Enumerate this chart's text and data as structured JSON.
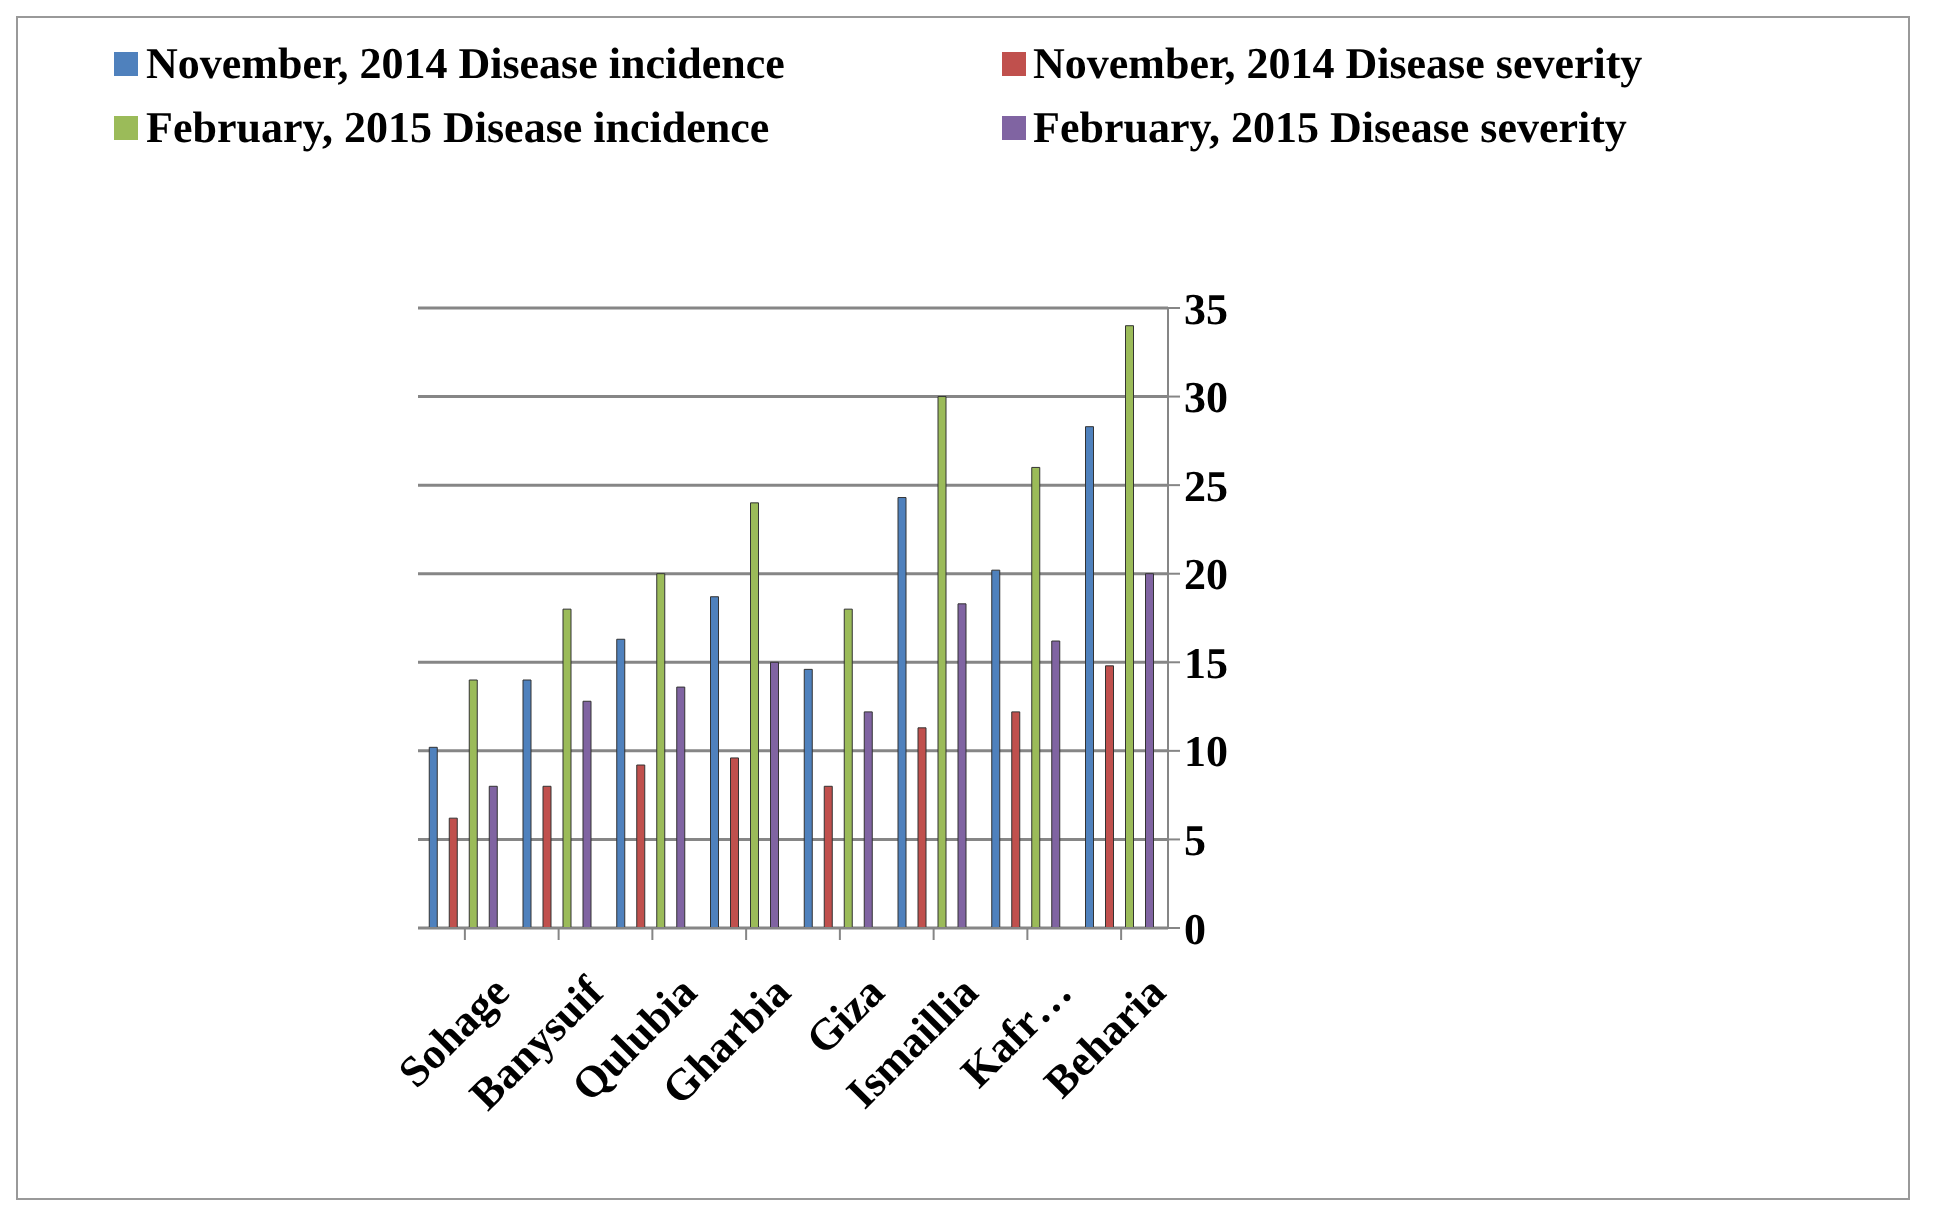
{
  "chart_data": {
    "type": "bar",
    "categories": [
      "Sohage",
      "Banysuif",
      "Qulubia",
      "Gharbia",
      "Giza",
      "Ismaillia",
      "Kafr…",
      "Beharia"
    ],
    "series": [
      {
        "name": "November, 2014 Disease incidence",
        "color": "#4f81bd",
        "values": [
          10.2,
          14,
          16.3,
          18.7,
          14.6,
          24.3,
          20.2,
          28.3
        ]
      },
      {
        "name": "November, 2014 Disease severity",
        "color": "#c0504d",
        "values": [
          6.2,
          8,
          9.2,
          9.6,
          8,
          11.3,
          12.2,
          14.8
        ]
      },
      {
        "name": "February, 2015 Disease incidence",
        "color": "#9bbb59",
        "values": [
          14,
          18,
          20,
          24,
          18,
          30,
          26,
          34
        ]
      },
      {
        "name": "February, 2015 Disease severity",
        "color": "#8064a2",
        "values": [
          8,
          12.8,
          13.6,
          15,
          12.2,
          18.3,
          16.2,
          20
        ]
      }
    ],
    "ylim": [
      0,
      35
    ],
    "yticks": [
      0,
      5,
      10,
      15,
      20,
      25,
      30,
      35
    ],
    "grid": "y",
    "legend": "top"
  }
}
